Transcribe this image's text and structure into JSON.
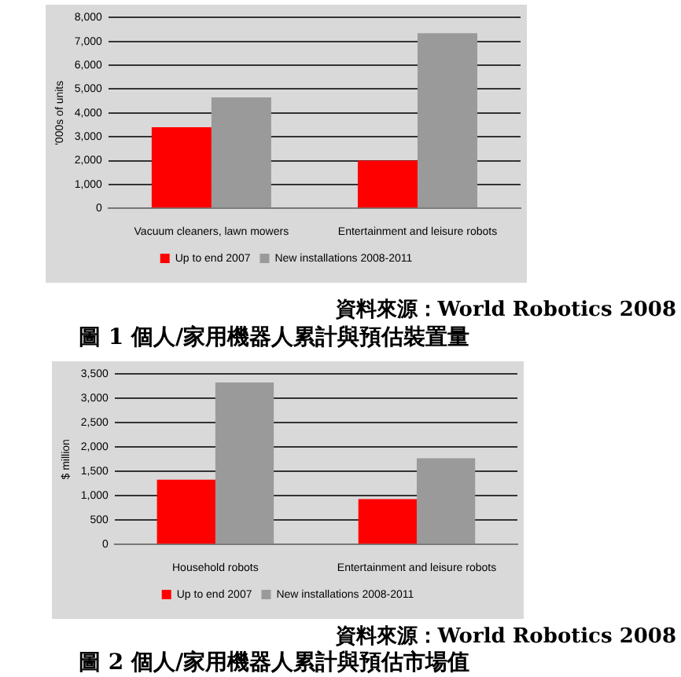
{
  "chart_data": [
    {
      "type": "bar",
      "title": "圖 1 個人/家用機器人累計與預估裝置量",
      "ylabel": "'000s of units",
      "categories": [
        "Vacuum cleaners, lawn mowers",
        "Entertainment and leisure robots"
      ],
      "series": [
        {
          "name": "Up to end 2007",
          "color": "#ff0000",
          "values": [
            3400,
            2000
          ]
        },
        {
          "name": "New installations 2008-2011",
          "color": "#9a9a9a",
          "values": [
            4650,
            7350
          ]
        }
      ],
      "ylim": [
        0,
        8000
      ],
      "yticks": [
        {
          "value": 0,
          "label": "0"
        },
        {
          "value": 1000,
          "label": "1,000"
        },
        {
          "value": 2000,
          "label": "2,000"
        },
        {
          "value": 3000,
          "label": "3,000"
        },
        {
          "value": 4000,
          "label": "4,000"
        },
        {
          "value": 5000,
          "label": "5,000"
        },
        {
          "value": 6000,
          "label": "6,000"
        },
        {
          "value": 7000,
          "label": "7,000"
        },
        {
          "value": 8000,
          "label": "8,000"
        }
      ],
      "grid": "y",
      "legend": "bottom",
      "annotations": [
        "資料來源：World Robotics 2008"
      ]
    },
    {
      "type": "bar",
      "title": "圖 2 個人/家用機器人累計與預估市場值",
      "ylabel": "$ million",
      "categories": [
        "Household robots",
        "Entertainment and leisure robots"
      ],
      "series": [
        {
          "name": "Up to end 2007",
          "color": "#ff0000",
          "values": [
            1330,
            930
          ]
        },
        {
          "name": "New installations 2008-2011",
          "color": "#9a9a9a",
          "values": [
            3330,
            1770
          ]
        }
      ],
      "ylim": [
        0,
        3500
      ],
      "yticks": [
        {
          "value": 0,
          "label": "0"
        },
        {
          "value": 500,
          "label": "500"
        },
        {
          "value": 1000,
          "label": "1,000"
        },
        {
          "value": 1500,
          "label": "1,500"
        },
        {
          "value": 2000,
          "label": "2,000"
        },
        {
          "value": 2500,
          "label": "2,500"
        },
        {
          "value": 3000,
          "label": "3,000"
        },
        {
          "value": 3500,
          "label": "3,500"
        }
      ],
      "grid": "y",
      "legend": "bottom",
      "annotations": [
        "資料來源：World Robotics 2008"
      ]
    }
  ]
}
